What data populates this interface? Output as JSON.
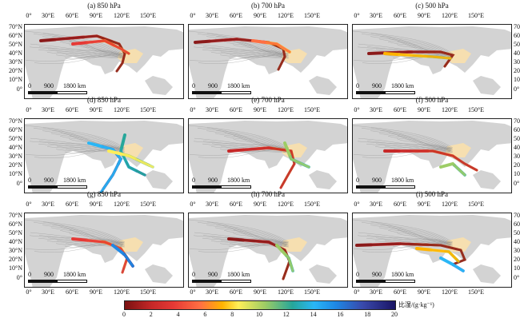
{
  "panels": [
    {
      "title": "(a) 850 hPa"
    },
    {
      "title": "(b) 700 hPa"
    },
    {
      "title": "(c) 500 hPa"
    },
    {
      "title": "(d) 850 hPa"
    },
    {
      "title": "(e) 700 hPa"
    },
    {
      "title": "(f) 500 hPa"
    },
    {
      "title": "(g) 850 hPa"
    },
    {
      "title": "(h) 700 hPa"
    },
    {
      "title": "(i) 500 hPa"
    }
  ],
  "lon_labels": [
    "0°",
    "30°E",
    "60°E",
    "90°E",
    "120°E",
    "150°E"
  ],
  "lat_labels": [
    "70°N",
    "60°N",
    "50°N",
    "40°N",
    "30°N",
    "20°N",
    "10°N",
    "0°"
  ],
  "scale_labels": [
    "0",
    "900",
    "1800 km"
  ],
  "colorbar": {
    "ticks": [
      "0",
      "2",
      "4",
      "6",
      "8",
      "10",
      "12",
      "14",
      "16",
      "18",
      "20"
    ],
    "unit": "比湿/(g·kg⁻¹)"
  }
}
